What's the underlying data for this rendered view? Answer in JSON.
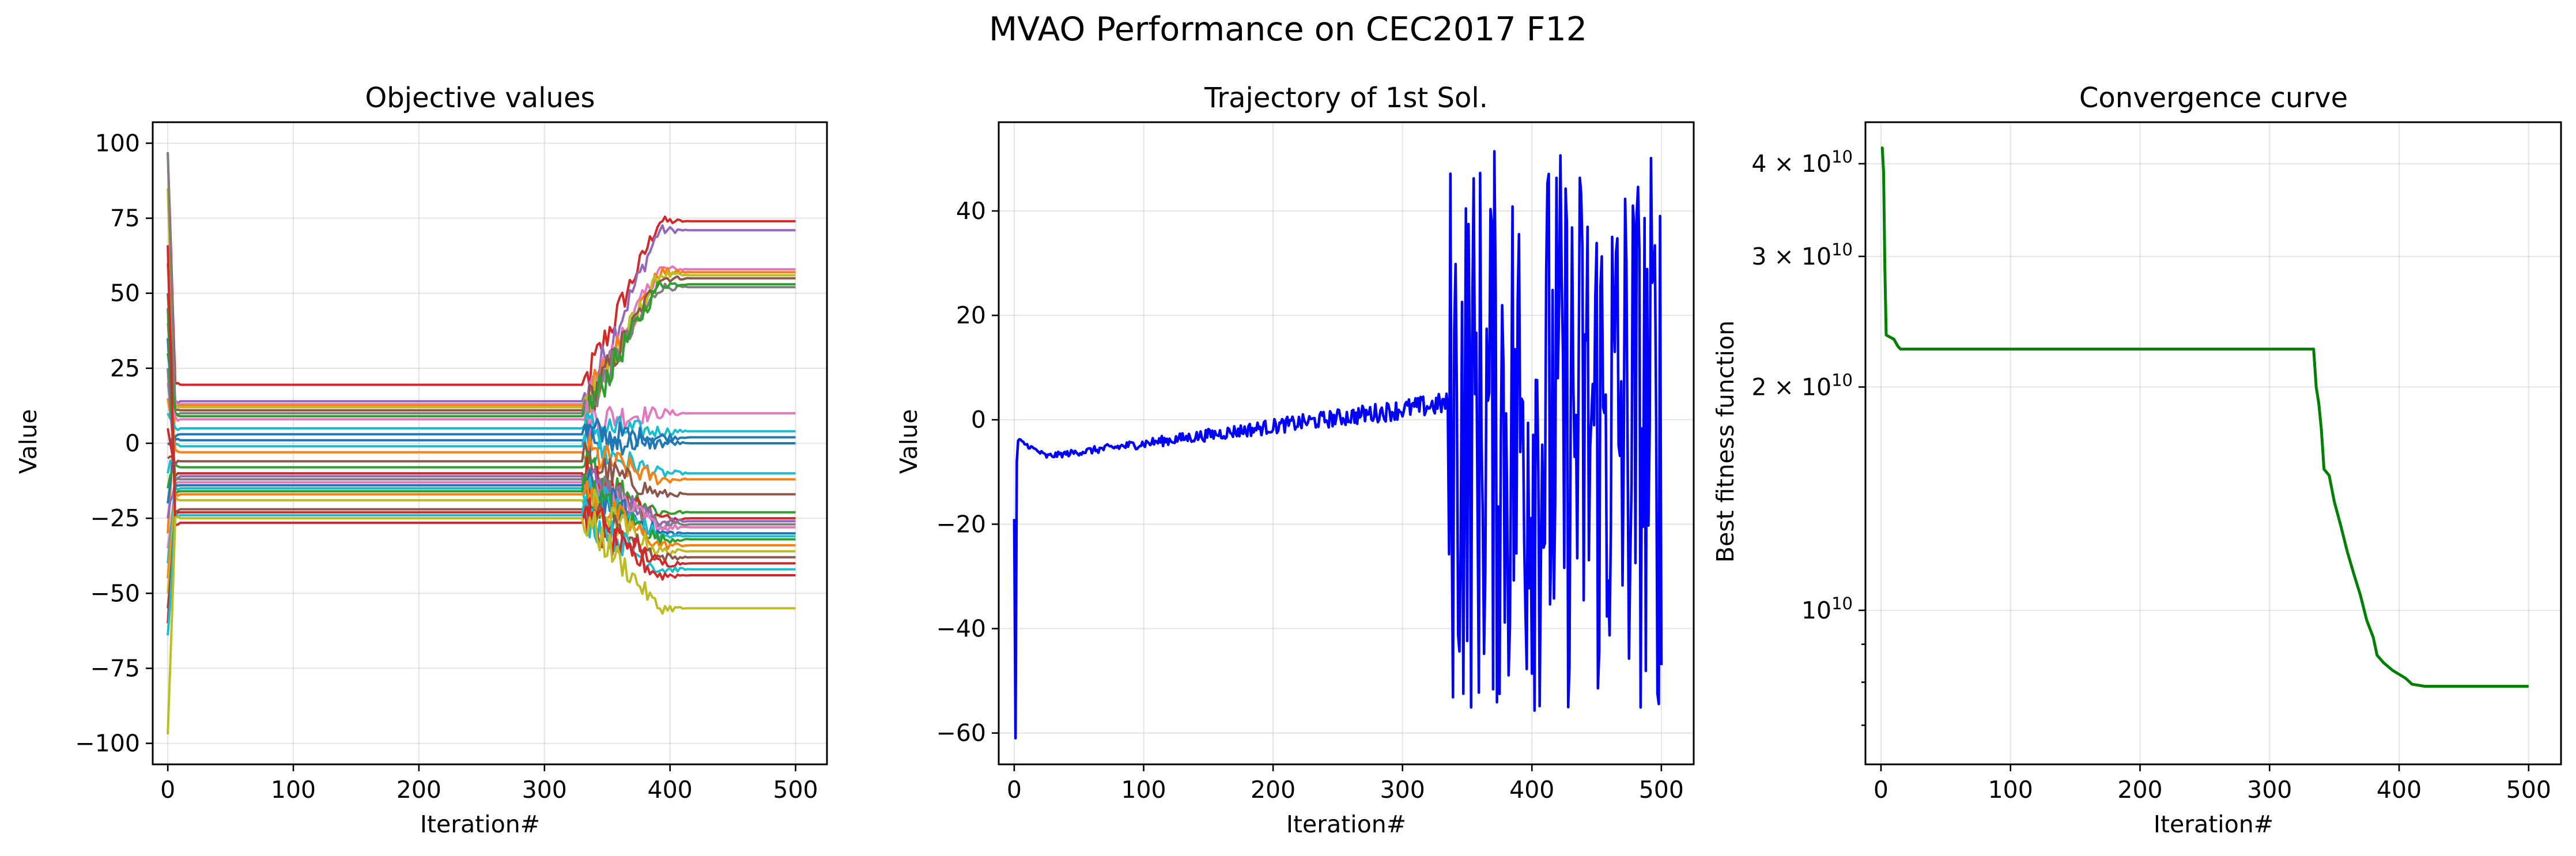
{
  "figure": {
    "title": "MVAO Performance on CEC2017 F12"
  },
  "chart_data": [
    {
      "type": "line",
      "title": "Objective values",
      "xlabel": "Iteration#",
      "ylabel": "Value",
      "xlim": [
        -12,
        525
      ],
      "ylim": [
        -107,
        107
      ],
      "xticks": [
        0,
        100,
        200,
        300,
        400,
        500
      ],
      "xtick_labels": [
        "0",
        "100",
        "200",
        "300",
        "400",
        "500"
      ],
      "yticks": [
        -100,
        -75,
        -50,
        -25,
        0,
        25,
        50,
        75,
        100
      ],
      "ytick_labels": [
        "−100",
        "−75",
        "−50",
        "−25",
        "0",
        "25",
        "50",
        "75",
        "100"
      ],
      "grid": true,
      "legend": "none",
      "approximate_series_profiles": {
        "description": "30 curves; each value = [start (iter 0), plateau (iters ~10-330), final (iters ~410-500), color]",
        "curves": [
          [
            97,
            19.5,
            74,
            "#d62728"
          ],
          [
            60,
            14,
            71,
            "#9467bd"
          ],
          [
            40,
            13,
            58,
            "#e377c2"
          ],
          [
            -30,
            12.5,
            57,
            "#ff7f0e"
          ],
          [
            85,
            12,
            56,
            "#bcbd22"
          ],
          [
            50,
            11,
            55,
            "#8c564b"
          ],
          [
            97,
            10,
            52,
            "#7f7f7f"
          ],
          [
            30,
            9,
            53,
            "#2ca02c"
          ],
          [
            20,
            8,
            10,
            "#e377c2"
          ],
          [
            10,
            5,
            4,
            "#17becf"
          ],
          [
            -20,
            3,
            2,
            "#1f77b4"
          ],
          [
            0,
            1,
            0,
            "#1f77b4"
          ],
          [
            -10,
            -1,
            -10,
            "#17becf"
          ],
          [
            15,
            -3,
            -12,
            "#ff7f0e"
          ],
          [
            -5,
            -6,
            -17,
            "#8c564b"
          ],
          [
            -15,
            -8,
            -23,
            "#2ca02c"
          ],
          [
            5,
            -10,
            -25,
            "#d62728"
          ],
          [
            -25,
            -11,
            -26,
            "#9467bd"
          ],
          [
            25,
            -12,
            -27,
            "#7f7f7f"
          ],
          [
            -35,
            -13,
            -28,
            "#e377c2"
          ],
          [
            35,
            -14,
            -30,
            "#1f77b4"
          ],
          [
            -40,
            -15,
            -31,
            "#17becf"
          ],
          [
            45,
            -16,
            -32,
            "#2ca02c"
          ],
          [
            -45,
            -17,
            -34,
            "#ff7f0e"
          ],
          [
            -50,
            -19,
            -36,
            "#bcbd22"
          ],
          [
            -55,
            -22,
            -38,
            "#8c564b"
          ],
          [
            -60,
            -23,
            -40,
            "#d62728"
          ],
          [
            -64,
            -24,
            -42,
            "#17becf"
          ],
          [
            66,
            -26.5,
            -44,
            "#d62728"
          ],
          [
            -97,
            -25,
            -55,
            "#bcbd22"
          ]
        ]
      }
    },
    {
      "type": "line",
      "title": "Trajectory of 1st Sol.",
      "xlabel": "Iteration#",
      "ylabel": "Value",
      "xlim": [
        -12,
        525
      ],
      "ylim": [
        -66,
        57
      ],
      "xticks": [
        0,
        100,
        200,
        300,
        400,
        500
      ],
      "xtick_labels": [
        "0",
        "100",
        "200",
        "300",
        "400",
        "500"
      ],
      "yticks": [
        -60,
        -40,
        -20,
        0,
        20,
        40
      ],
      "ytick_labels": [
        "−60",
        "−40",
        "−20",
        "0",
        "20",
        "40"
      ],
      "grid": true,
      "legend": "none",
      "series_color": "#0000ff",
      "approximate_trend": {
        "start": -19,
        "min_point": [
          1,
          -61
        ],
        "early_level": -4,
        "dip_level_iter_25": -7,
        "level_at_300": 2,
        "oscillation_start_iter": 335,
        "oscillation_range": [
          -57,
          53
        ],
        "final_value": -47
      }
    },
    {
      "type": "line",
      "title": "Convergence curve",
      "xlabel": "Iteration#",
      "ylabel": "Best fitness function",
      "yscale": "log",
      "xlim": [
        -12,
        525
      ],
      "ylim": [
        6200000000.0,
        45500000000.0
      ],
      "xticks": [
        0,
        100,
        200,
        300,
        400,
        500
      ],
      "xtick_labels": [
        "0",
        "100",
        "200",
        "300",
        "400",
        "500"
      ],
      "yticks_major": [
        10000000000.0,
        20000000000.0,
        30000000000.0,
        40000000000.0
      ],
      "ytick_labels": [
        "10",
        "2 × 10",
        "3 × 10",
        "4 × 10"
      ],
      "ytick_exponent": "10",
      "grid": true,
      "legend": "none",
      "series_color": "#008000",
      "points": [
        [
          0,
          42000000000.0
        ],
        [
          1,
          42000000000.0
        ],
        [
          2,
          39000000000.0
        ],
        [
          3,
          29000000000.0
        ],
        [
          4,
          23500000000.0
        ],
        [
          6,
          23400000000.0
        ],
        [
          10,
          23200000000.0
        ],
        [
          13,
          22700000000.0
        ],
        [
          15,
          22500000000.0
        ],
        [
          100,
          22500000000.0
        ],
        [
          200,
          22500000000.0
        ],
        [
          334,
          22500000000.0
        ],
        [
          336,
          20000000000.0
        ],
        [
          338,
          19000000000.0
        ],
        [
          340,
          17500000000.0
        ],
        [
          342,
          15500000000.0
        ],
        [
          346,
          15200000000.0
        ],
        [
          350,
          14000000000.0
        ],
        [
          355,
          13000000000.0
        ],
        [
          360,
          12000000000.0
        ],
        [
          365,
          11200000000.0
        ],
        [
          370,
          10500000000.0
        ],
        [
          375,
          9700000000.0
        ],
        [
          380,
          9200000000.0
        ],
        [
          383,
          8700000000.0
        ],
        [
          388,
          8500000000.0
        ],
        [
          395,
          8300000000.0
        ],
        [
          405,
          8100000000.0
        ],
        [
          410,
          7950000000.0
        ],
        [
          420,
          7900000000.0
        ],
        [
          450,
          7900000000.0
        ],
        [
          500,
          7900000000.0
        ]
      ]
    }
  ]
}
